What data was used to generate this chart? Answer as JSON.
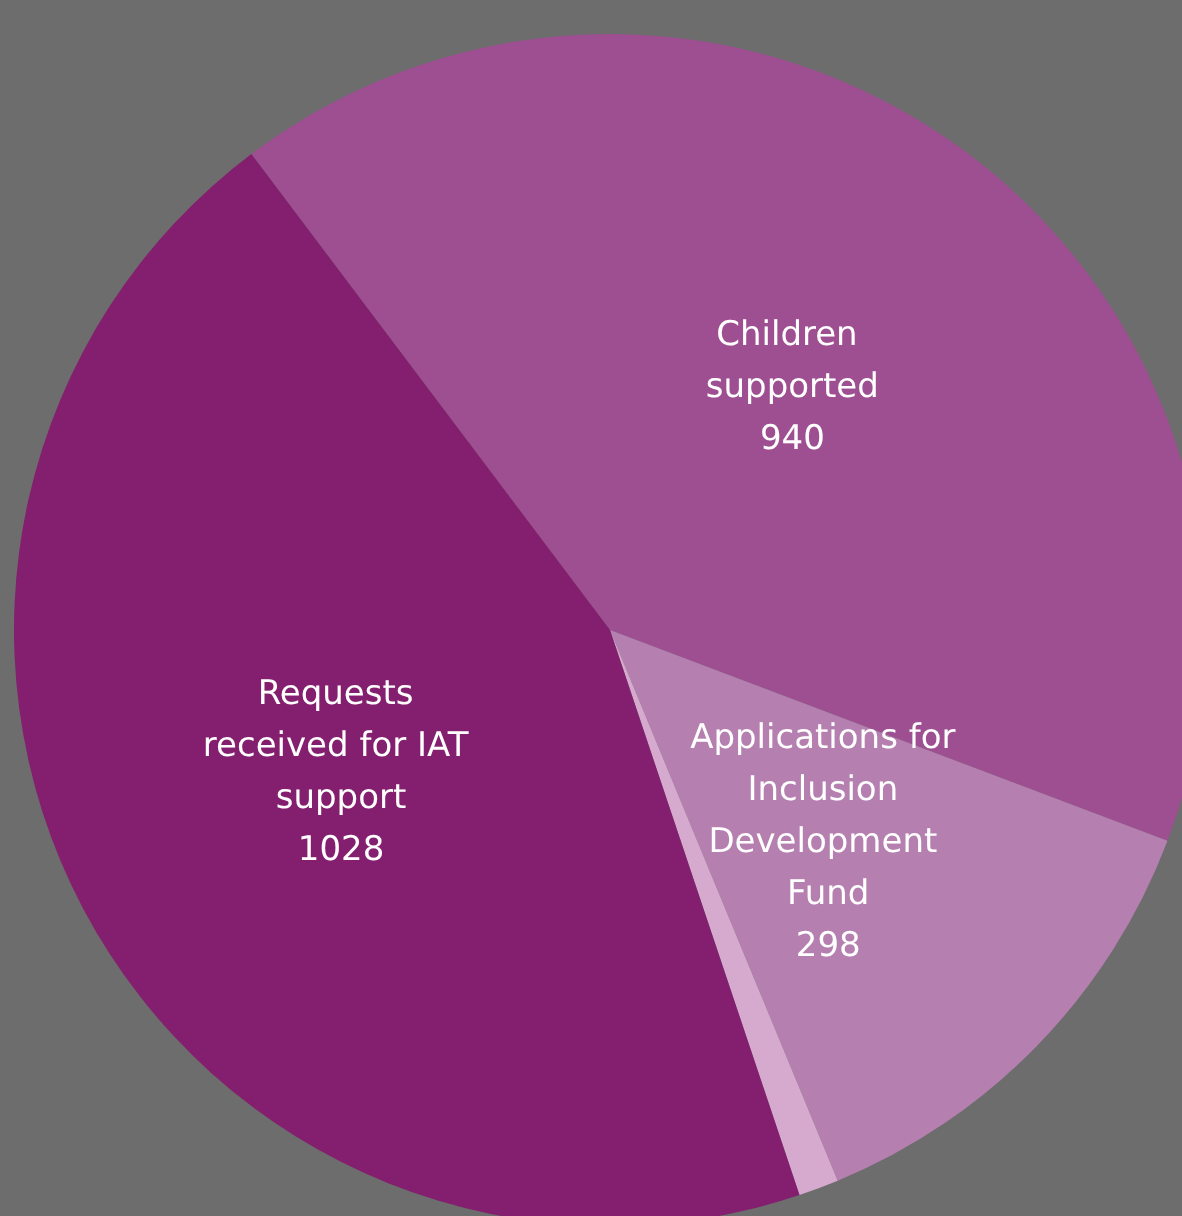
{
  "chart_data": {
    "type": "pie",
    "categories": [
      "Children supported",
      "Applications for Inclusion Development Fund",
      null,
      "Requests received for IAT support"
    ],
    "values": [
      940,
      298,
      25,
      1028
    ],
    "colors": [
      "#9d4f92",
      "#b57fb0",
      "#d6a9cf",
      "#841e6e"
    ],
    "value_labels": [
      "940",
      "298",
      null,
      "1028"
    ],
    "legend": false
  }
}
